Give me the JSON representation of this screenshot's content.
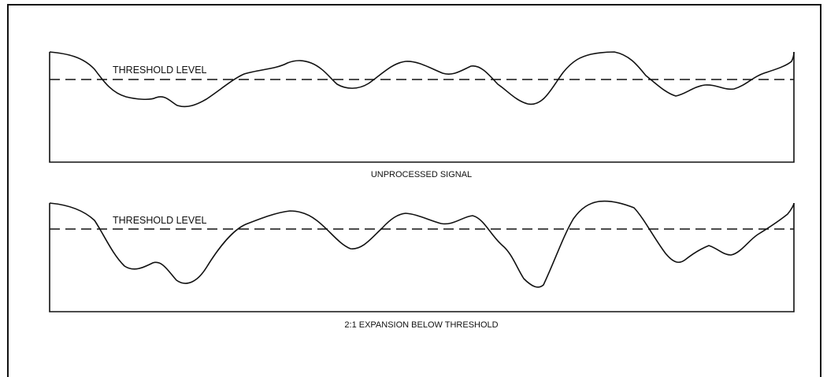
{
  "figure": {
    "panels": [
      {
        "id": "unprocessed",
        "threshold_label": "THRESHOLD LEVEL",
        "caption": "UNPROCESSED SIGNAL"
      },
      {
        "id": "expanded",
        "threshold_label": "THRESHOLD LEVEL",
        "caption": "2:1 EXPANSION BELOW THRESHOLD"
      }
    ]
  },
  "colors": {
    "ink": "#111111",
    "paper": "#ffffff"
  }
}
